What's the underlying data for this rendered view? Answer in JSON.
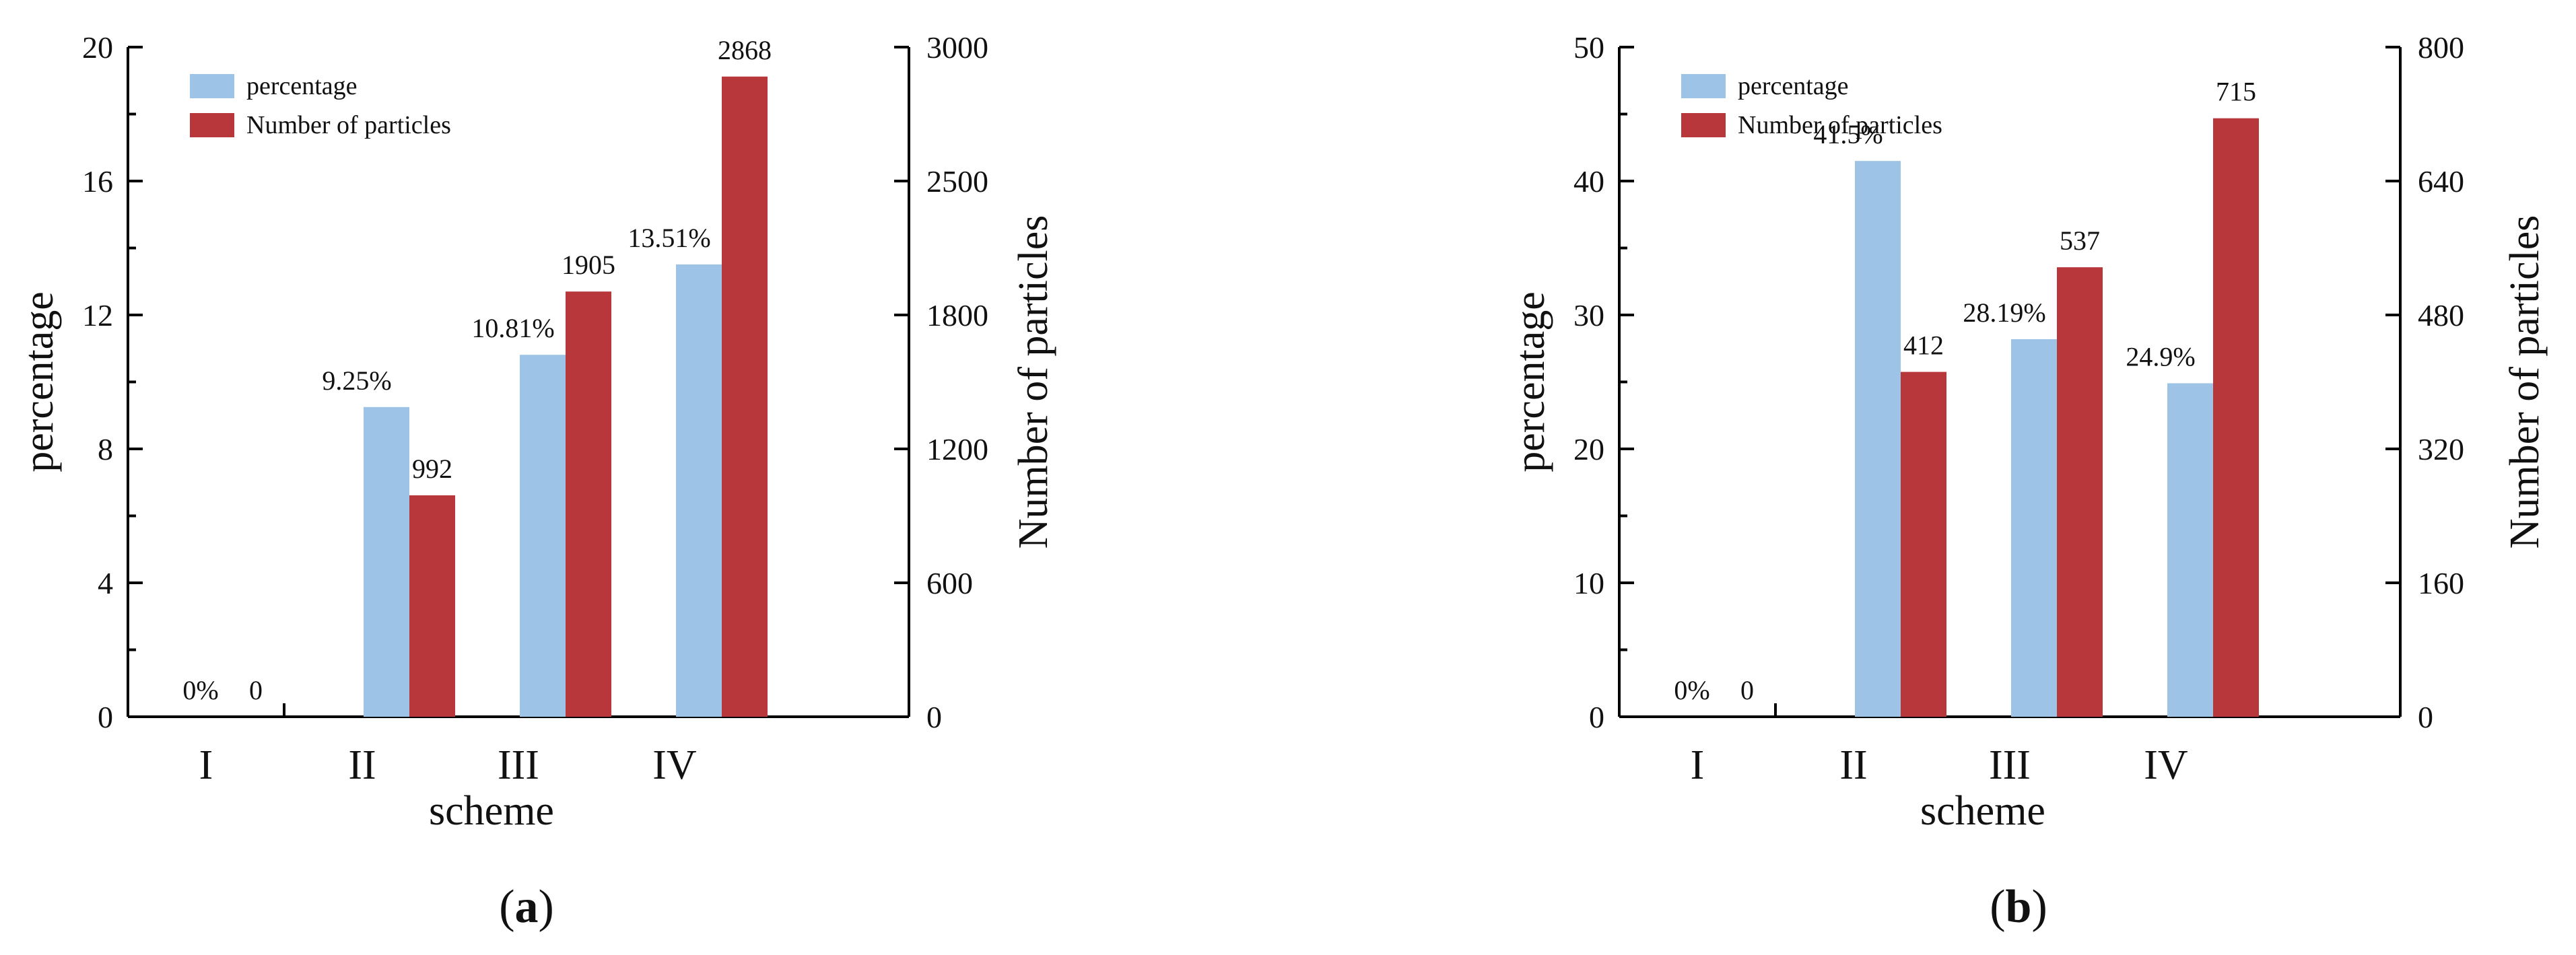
{
  "colors": {
    "percentage": "#9dc3e6",
    "particles": "#b8373b",
    "axis": "#000000"
  },
  "chart_data": [
    {
      "type": "bar",
      "caption": "a",
      "categories": [
        "I",
        "II",
        "III",
        "IV"
      ],
      "xlabel": "scheme",
      "ylabel": "percentage",
      "y2label": "Number of particles",
      "ylim": [
        0,
        20
      ],
      "y2lim": [
        0,
        3000
      ],
      "yticks": [
        "0",
        "4",
        "8",
        "12",
        "16",
        "20"
      ],
      "y2ticks": [
        "0",
        "600",
        "1200",
        "1800",
        "2500",
        "3000"
      ],
      "legend_position": "top-left",
      "series": [
        {
          "name": "percentage",
          "axis": "left",
          "values": [
            0,
            9.25,
            10.81,
            13.51
          ],
          "labels": [
            "0%",
            "9.25%",
            "10.81%",
            "13.51%"
          ]
        },
        {
          "name": "Number of particles",
          "axis": "right",
          "values": [
            0,
            992,
            1905,
            2868
          ],
          "labels": [
            "0",
            "992",
            "1905",
            "2868"
          ]
        }
      ]
    },
    {
      "type": "bar",
      "caption": "b",
      "categories": [
        "I",
        "II",
        "III",
        "IV"
      ],
      "xlabel": "scheme",
      "ylabel": "percentage",
      "y2label": "Number of particles",
      "ylim": [
        0,
        50
      ],
      "y2lim": [
        0,
        800
      ],
      "yticks": [
        "0",
        "10",
        "20",
        "30",
        "40",
        "50"
      ],
      "y2ticks": [
        "0",
        "160",
        "320",
        "480",
        "640",
        "800"
      ],
      "legend_position": "top-left",
      "series": [
        {
          "name": "percentage",
          "axis": "left",
          "values": [
            0,
            41.5,
            28.19,
            24.9
          ],
          "labels": [
            "0%",
            "41.5%",
            "28.19%",
            "24.9%"
          ]
        },
        {
          "name": "Number of particles",
          "axis": "right",
          "values": [
            0,
            412,
            537,
            715
          ],
          "labels": [
            "0",
            "412",
            "537",
            "715"
          ]
        }
      ]
    }
  ]
}
